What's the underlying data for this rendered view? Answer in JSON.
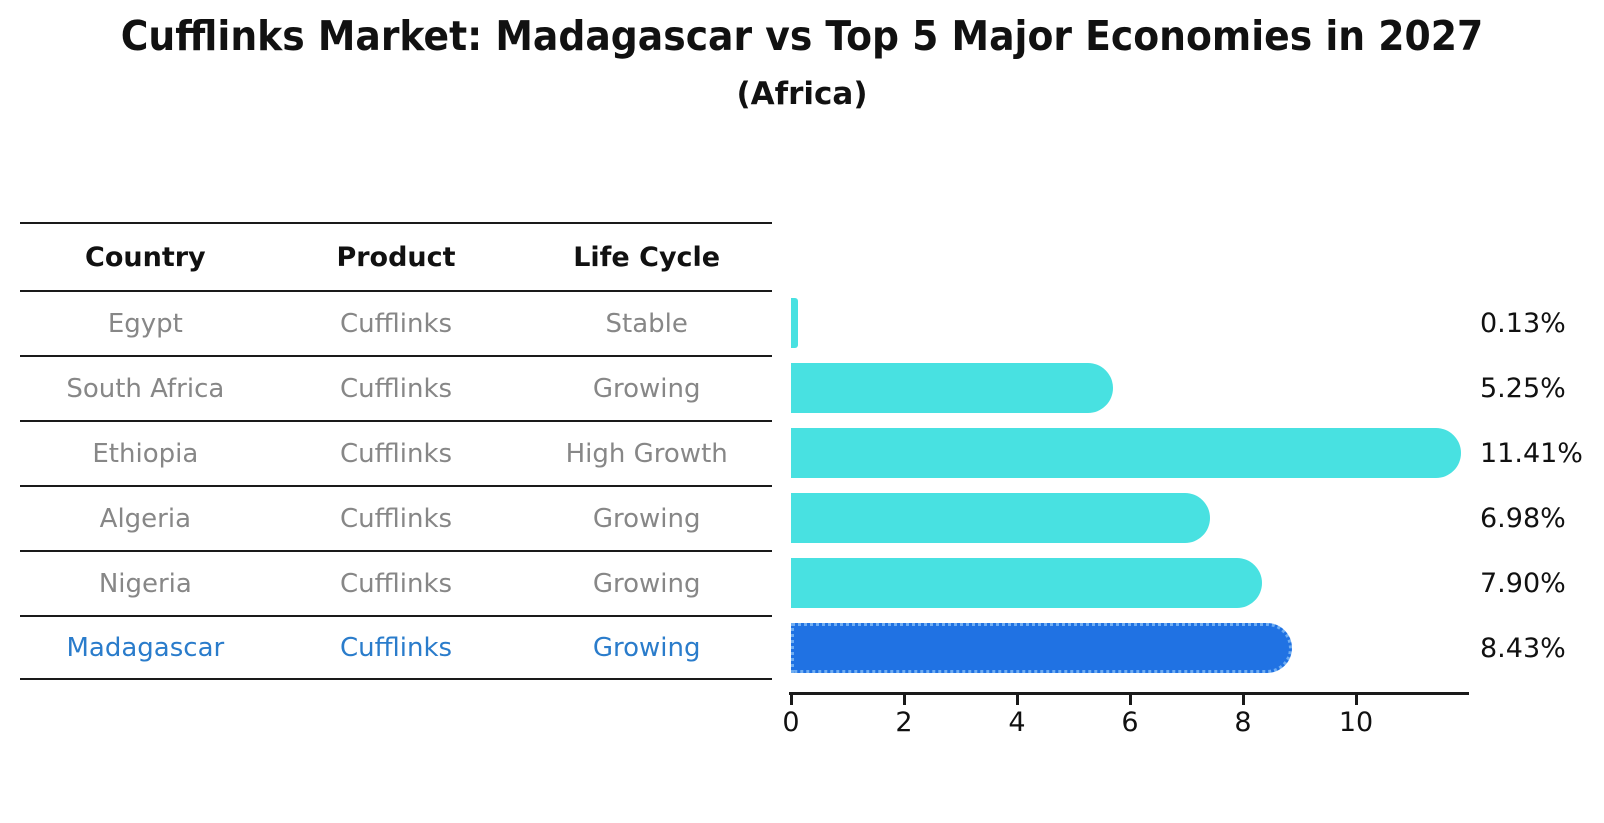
{
  "title": "Cufflinks Market: Madagascar vs Top 5 Major Economies in 2027",
  "subtitle": "(Africa)",
  "table": {
    "headers": [
      "Country",
      "Product",
      "Life Cycle"
    ],
    "rows": [
      {
        "country": "Egypt",
        "product": "Cufflinks",
        "life_cycle": "Stable",
        "highlight": false
      },
      {
        "country": "South Africa",
        "product": "Cufflinks",
        "life_cycle": "Growing",
        "highlight": false
      },
      {
        "country": "Ethiopia",
        "product": "Cufflinks",
        "life_cycle": "High Growth",
        "highlight": false
      },
      {
        "country": "Algeria",
        "product": "Cufflinks",
        "life_cycle": "Growing",
        "highlight": false
      },
      {
        "country": "Nigeria",
        "product": "Cufflinks",
        "life_cycle": "Growing",
        "highlight": false
      },
      {
        "country": "Madagascar",
        "product": "Cufflinks",
        "life_cycle": "Growing",
        "highlight": true
      }
    ]
  },
  "chart_data": {
    "type": "bar",
    "orientation": "horizontal",
    "title": "Cufflinks Market: Madagascar vs Top 5 Major Economies in 2027",
    "subtitle": "(Africa)",
    "categories": [
      "Egypt",
      "South Africa",
      "Ethiopia",
      "Algeria",
      "Nigeria",
      "Madagascar"
    ],
    "values": [
      0.13,
      5.25,
      11.41,
      6.98,
      7.9,
      8.43
    ],
    "value_labels": [
      "0.13%",
      "5.25%",
      "11.41%",
      "6.98%",
      "7.90%",
      "8.43%"
    ],
    "x_ticks": [
      0,
      2,
      4,
      6,
      8,
      10
    ],
    "xlim": [
      0,
      12
    ],
    "grid": false,
    "legend": false,
    "highlight_index": 5,
    "colors": {
      "bar": "#48E1E1",
      "highlight_bar": "#2072E3",
      "highlight_border": "#6FADF2",
      "highlight_text": "#2A7CCB",
      "table_text": "#878787",
      "header_text": "#111111",
      "value_text": "#111111",
      "axis": "#1A1A1A"
    }
  }
}
